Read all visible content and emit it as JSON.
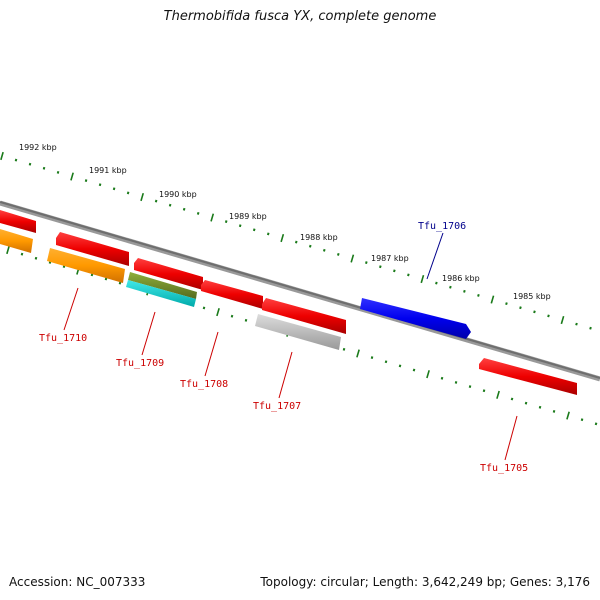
{
  "title": "Thermobifida fusca YX, complete genome",
  "footer": {
    "accession": "Accession: NC_007333",
    "summary": "Topology: circular; Length: 3,642,249 bp; Genes: 3,176"
  },
  "ruler_labels": [
    "1992 kbp",
    "1991 kbp",
    "1990 kbp",
    "1989 kbp",
    "1988 kbp",
    "1987 kbp",
    "1986 kbp",
    "1985 kbp"
  ],
  "genes": [
    {
      "name": "Tfu_1710",
      "color": "#cc0000"
    },
    {
      "name": "Tfu_1709",
      "color": "#cc0000"
    },
    {
      "name": "Tfu_1708",
      "color": "#cc0000"
    },
    {
      "name": "Tfu_1707",
      "color": "#cc0000"
    },
    {
      "name": "Tfu_1706",
      "color": "#00008b"
    },
    {
      "name": "Tfu_1705",
      "color": "#cc0000"
    }
  ],
  "colors": {
    "backbone": "#808080",
    "ruler_ticks": "#1a7a1a",
    "cds_red": "#ff0000",
    "cds_blue": "#0000ff",
    "rna_orange": "#ff9900",
    "olive": "#6b8e23",
    "cyan": "#00cccc",
    "gray": "#bbbbbb"
  }
}
